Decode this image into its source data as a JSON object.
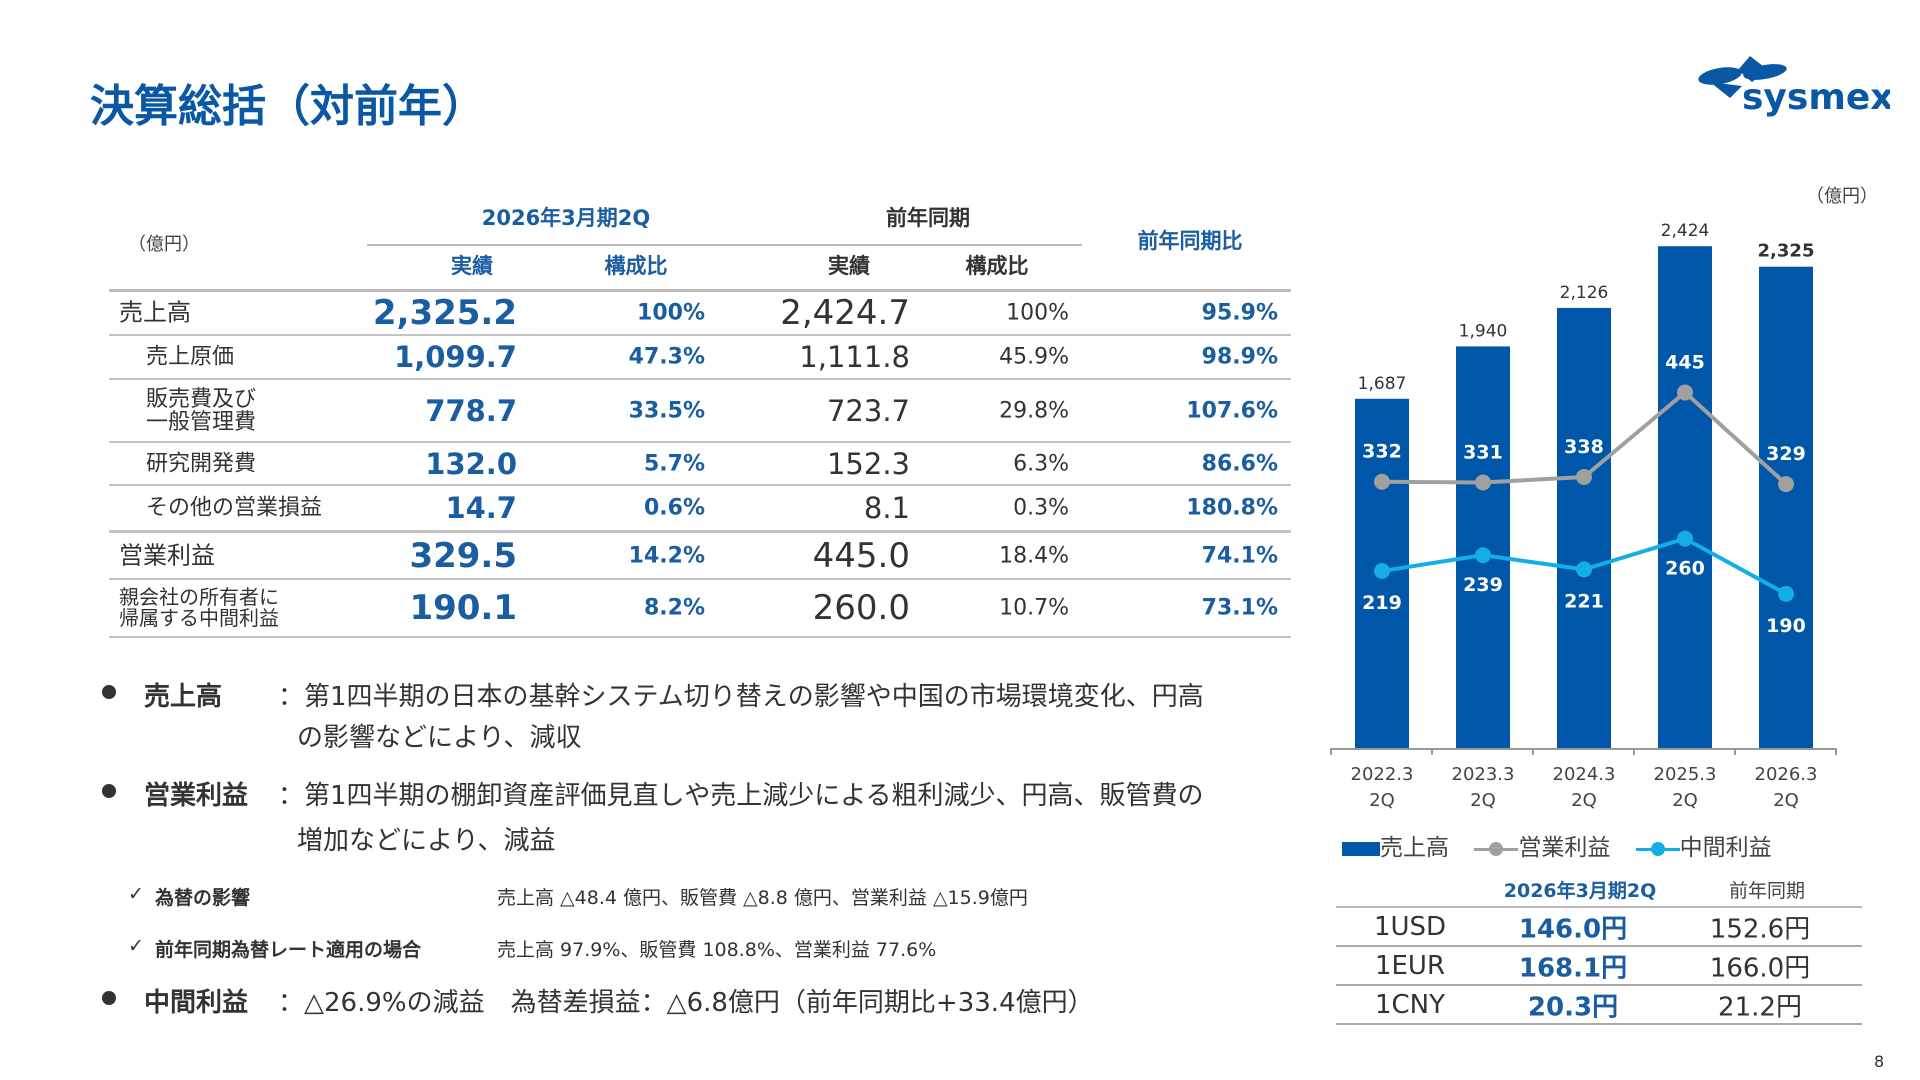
{
  "title": "決算総括（対前年）",
  "logo": "sysmex",
  "page_number": "8",
  "table": {
    "unit": "（億円）",
    "group_current": "2026年3月期2Q",
    "group_prev": "前年同期",
    "yoy": "前年同期比",
    "col_actual": "実績",
    "col_ratio": "構成比",
    "rows": [
      {
        "label": "売上高",
        "cur": "2,325.2",
        "cur_ratio": "100%",
        "prev": "2,424.7",
        "prev_ratio": "100%",
        "yoy": "95.9%"
      },
      {
        "label": "売上原価",
        "cur": "1,099.7",
        "cur_ratio": "47.3%",
        "prev": "1,111.8",
        "prev_ratio": "45.9%",
        "yoy": "98.9%"
      },
      {
        "label1": "販売費及び",
        "label2": "一般管理費",
        "cur": "778.7",
        "cur_ratio": "33.5%",
        "prev": "723.7",
        "prev_ratio": "29.8%",
        "yoy": "107.6%"
      },
      {
        "label": "研究開発費",
        "cur": "132.0",
        "cur_ratio": "5.7%",
        "prev": "152.3",
        "prev_ratio": "6.3%",
        "yoy": "86.6%"
      },
      {
        "label": "その他の営業損益",
        "cur": "14.7",
        "cur_ratio": "0.6%",
        "prev": "8.1",
        "prev_ratio": "0.3%",
        "yoy": "180.8%"
      },
      {
        "label": "営業利益",
        "cur": "329.5",
        "cur_ratio": "14.2%",
        "prev": "445.0",
        "prev_ratio": "18.4%",
        "yoy": "74.1%"
      },
      {
        "label1": "親会社の所有者に",
        "label2": "帰属する中間利益",
        "cur": "190.1",
        "cur_ratio": "8.2%",
        "prev": "260.0",
        "prev_ratio": "10.7%",
        "yoy": "73.1%"
      }
    ]
  },
  "bullets": [
    {
      "label": "売上高",
      "line1": "：第1四半期の日本の基幹システム切り替えの影響や中国の市場環境変化、円高",
      "line2": "の影響などにより、減収"
    },
    {
      "label": "営業利益",
      "line1": "：第1四半期の棚卸資産評価見直しや売上減少による粗利減少、円高、販管費の",
      "line2": "増加などにより、減益"
    },
    {
      "label": "中間利益",
      "line1": "：△26.9%の減益　為替差損益：△6.8億円（前年同期比+33.4億円）"
    }
  ],
  "checks": [
    {
      "mark": "✓",
      "label": "為替の影響",
      "text": "売上高 △48.4 億円、販管費 △8.8 億円、営業利益 △15.9億円"
    },
    {
      "mark": "✓",
      "label": "前年同期為替レート適用の場合",
      "text": "売上高 97.9%、販管費 108.8%、営業利益 77.6%"
    }
  ],
  "chart_data": {
    "type": "bar",
    "unit": "（億円）",
    "categories": [
      "2022.3\n2Q",
      "2023.3\n2Q",
      "2024.3\n2Q",
      "2025.3\n2Q",
      "2026.3\n2Q"
    ],
    "cat_line1": [
      "2022.3",
      "2023.3",
      "2024.3",
      "2025.3",
      "2026.3"
    ],
    "cat_line2": [
      "2Q",
      "2Q",
      "2Q",
      "2Q",
      "2Q"
    ],
    "series": [
      {
        "name": "売上高",
        "kind": "bar",
        "color": "#0056a8",
        "values": [
          1687,
          1940,
          2126,
          2424,
          2325
        ],
        "labels": [
          "1,687",
          "1,940",
          "2,126",
          "2,424",
          "2,325"
        ]
      },
      {
        "name": "営業利益",
        "kind": "line",
        "color": "#a0a0a0",
        "values": [
          332,
          331,
          338,
          445,
          329
        ]
      },
      {
        "name": "中間利益",
        "kind": "line",
        "color": "#13aee3",
        "values": [
          219,
          239,
          221,
          260,
          190
        ]
      }
    ]
  },
  "fx": {
    "head_current": "2026年3月期2Q",
    "head_prev": "前年同期",
    "rows": [
      {
        "cur": "1USD",
        "now": "146.0円",
        "prev": "152.6円"
      },
      {
        "cur": "1EUR",
        "now": "168.1円",
        "prev": "166.0円"
      },
      {
        "cur": "1CNY",
        "now": "20.3円",
        "prev": "21.2円"
      }
    ]
  }
}
